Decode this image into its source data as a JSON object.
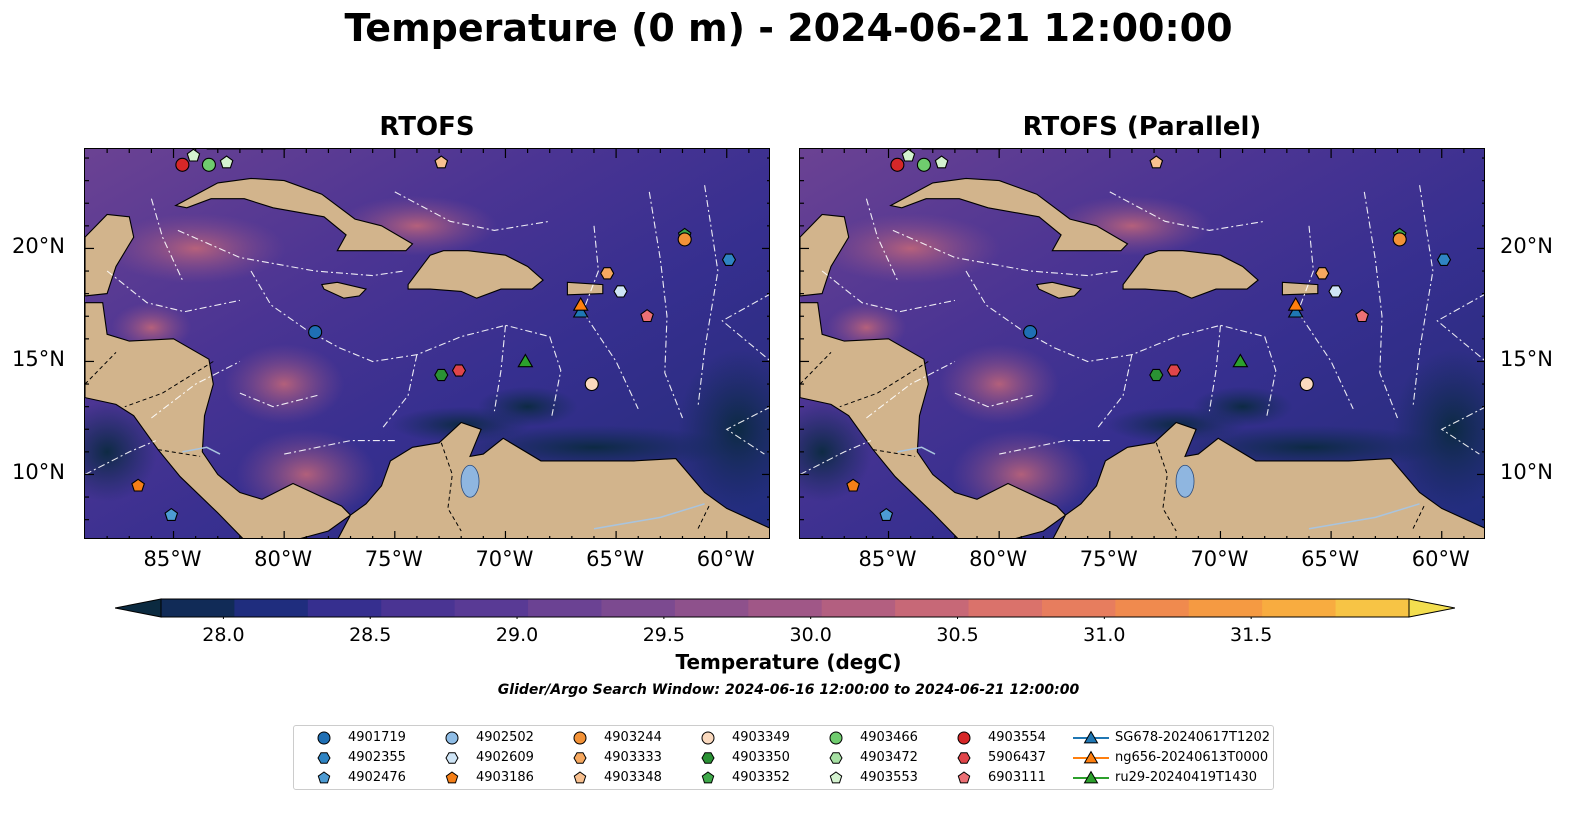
{
  "title": "Temperature (0 m) - 2024-06-21 12:00:00",
  "panels": [
    {
      "title": "RTOFS"
    },
    {
      "title": "RTOFS (Parallel)"
    }
  ],
  "axes": {
    "lon_labels": [
      "85°W",
      "80°W",
      "75°W",
      "70°W",
      "65°W",
      "60°W"
    ],
    "lon_values": [
      -85,
      -80,
      -75,
      -70,
      -65,
      -60
    ],
    "lat_labels": [
      "20°N",
      "15°N",
      "10°N"
    ],
    "lat_values": [
      20,
      15,
      10
    ],
    "lon_range": [
      -89,
      -58
    ],
    "lat_range": [
      7.1,
      24.4
    ]
  },
  "colorbar": {
    "title": "Temperature (degC)",
    "tick_labels": [
      "28.0",
      "28.5",
      "29.0",
      "29.5",
      "30.0",
      "30.5",
      "31.0",
      "31.5"
    ],
    "tick_values": [
      28.0,
      28.5,
      29.0,
      29.5,
      30.0,
      30.5,
      31.0,
      31.5
    ],
    "range": [
      28.0,
      31.5
    ],
    "step": 0.25,
    "extend": "both",
    "colors": [
      "#0b2a40",
      "#112b57",
      "#1f2d7e",
      "#362f8f",
      "#4a3493",
      "#593a95",
      "#6b4293",
      "#7c4a90",
      "#8e518c",
      "#a05787",
      "#b35f80",
      "#c76877",
      "#da726b",
      "#e77d5e",
      "#f08a4e",
      "#f59a42",
      "#f8ac40",
      "#f7c445",
      "#f3de4f"
    ]
  },
  "search_window": "Glider/Argo Search Window: 2024-06-16 12:00:00 to 2024-06-21 12:00:00",
  "legend": {
    "columns": [
      [
        {
          "label": "4901719",
          "marker": "circle",
          "color": "#1f6fb4"
        },
        {
          "label": "4902355",
          "marker": "hexagon",
          "color": "#2f84c3"
        },
        {
          "label": "4902476",
          "marker": "pentagon",
          "color": "#4d9bd3"
        }
      ],
      [
        {
          "label": "4902502",
          "marker": "circle",
          "color": "#8fbde6"
        },
        {
          "label": "4902609",
          "marker": "hexagon",
          "color": "#cfe5f6"
        },
        {
          "label": "4903186",
          "marker": "pentagon",
          "color": "#f57f17"
        }
      ],
      [
        {
          "label": "4903244",
          "marker": "circle",
          "color": "#f39237"
        },
        {
          "label": "4903333",
          "marker": "hexagon",
          "color": "#f6a85f"
        },
        {
          "label": "4903348",
          "marker": "pentagon",
          "color": "#f8c08f"
        }
      ],
      [
        {
          "label": "4903349",
          "marker": "circle",
          "color": "#fad9be"
        },
        {
          "label": "4903350",
          "marker": "hexagon",
          "color": "#2a9134"
        },
        {
          "label": "4903352",
          "marker": "pentagon",
          "color": "#3fa94a"
        }
      ],
      [
        {
          "label": "4903466",
          "marker": "circle",
          "color": "#6fcc6e"
        },
        {
          "label": "4903472",
          "marker": "hexagon",
          "color": "#a6e0a3"
        },
        {
          "label": "4903553",
          "marker": "pentagon",
          "color": "#d4f2cf"
        }
      ],
      [
        {
          "label": "4903554",
          "marker": "circle",
          "color": "#d62728"
        },
        {
          "label": "5906437",
          "marker": "hexagon",
          "color": "#e0454a"
        },
        {
          "label": "6903111",
          "marker": "pentagon",
          "color": "#ec7075"
        }
      ],
      [
        {
          "label": "SG678-20240617T1202",
          "marker": "triangle",
          "color": "#1f77b4"
        },
        {
          "label": "ng656-20240613T0000",
          "marker": "triangle",
          "color": "#ff7f0e"
        },
        {
          "label": "ru29-20240419T1430",
          "marker": "triangle",
          "color": "#2ca02c"
        }
      ]
    ]
  },
  "markers": [
    {
      "id": "4903554",
      "lon": -84.6,
      "lat": 23.7,
      "marker": "circle",
      "color": "#d62728"
    },
    {
      "id": "4903553",
      "lon": -84.1,
      "lat": 24.1,
      "marker": "pentagon",
      "color": "#d4f2cf"
    },
    {
      "id": "4903466",
      "lon": -83.4,
      "lat": 23.7,
      "marker": "circle",
      "color": "#6fcc6e"
    },
    {
      "id": "4903553b",
      "lon": -82.6,
      "lat": 23.8,
      "marker": "pentagon",
      "color": "#d4f2cf"
    },
    {
      "id": "4903348",
      "lon": -72.9,
      "lat": 23.8,
      "marker": "pentagon",
      "color": "#f8c08f"
    },
    {
      "id": "4903352",
      "lon": -61.9,
      "lat": 20.6,
      "marker": "pentagon",
      "color": "#3fa94a"
    },
    {
      "id": "4903244",
      "lon": -61.9,
      "lat": 20.4,
      "marker": "circle",
      "color": "#f39237"
    },
    {
      "id": "4902355",
      "lon": -59.9,
      "lat": 19.5,
      "marker": "hexagon",
      "color": "#2f84c3"
    },
    {
      "id": "4903333",
      "lon": -65.4,
      "lat": 18.9,
      "marker": "hexagon",
      "color": "#f6a85f"
    },
    {
      "id": "4902609",
      "lon": -64.8,
      "lat": 18.1,
      "marker": "hexagon",
      "color": "#cfe5f6"
    },
    {
      "id": "6903111",
      "lon": -63.6,
      "lat": 17.0,
      "marker": "pentagon",
      "color": "#ec7075"
    },
    {
      "id": "4901719",
      "lon": -78.6,
      "lat": 16.3,
      "marker": "circle",
      "color": "#1f6fb4"
    },
    {
      "id": "5906437",
      "lon": -72.1,
      "lat": 14.6,
      "marker": "hexagon",
      "color": "#e0454a"
    },
    {
      "id": "4903350",
      "lon": -72.9,
      "lat": 14.4,
      "marker": "hexagon",
      "color": "#2a9134"
    },
    {
      "id": "4903349",
      "lon": -66.1,
      "lat": 14.0,
      "marker": "circle",
      "color": "#fad9be"
    },
    {
      "id": "4903186",
      "lon": -86.6,
      "lat": 9.5,
      "marker": "pentagon",
      "color": "#f57f17"
    },
    {
      "id": "4902476",
      "lon": -85.1,
      "lat": 8.2,
      "marker": "pentagon",
      "color": "#4d9bd3"
    },
    {
      "id": "SG678-20240617T1202",
      "lon": -66.6,
      "lat": 17.2,
      "marker": "triangle",
      "color": "#1f77b4"
    },
    {
      "id": "ng656-20240613T0000",
      "lon": -66.6,
      "lat": 17.5,
      "marker": "triangle",
      "color": "#ff7f0e"
    },
    {
      "id": "ru29-20240419T1430",
      "lon": -69.1,
      "lat": 15.0,
      "marker": "triangle",
      "color": "#2ca02c"
    }
  ],
  "land_color": "#d2b48c",
  "lake_color": "#8fb6e0"
}
